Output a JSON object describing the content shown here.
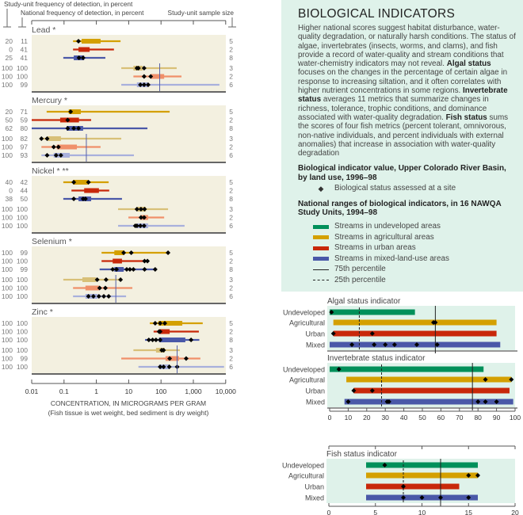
{
  "colors": {
    "undeveloped": "#00905a",
    "agricultural": "#d4a000",
    "urban": "#c8280a",
    "mixed": "#4a58a8",
    "agricultural_sediment": "#d8c078",
    "urban_sediment": "#f0906a",
    "mixed_sediment": "#a8b0dc",
    "panel": "#f3f0e0",
    "mint": "#dff2ea"
  },
  "info": {
    "title": "BIOLOGICAL INDICATORS",
    "p1": "Higher national scores suggest habitat disturbance, water-quality degradation, or naturally harsh conditions. The status of algae, invertebrates (insects, worms, and clams), and fish provide a record of water-quality and stream conditions that water-chemistry indicators may not reveal. ",
    "algal_term": "Algal status",
    "p2": " focuses on the changes in the percentage of certain algae in response to increasing siltation, and it often correlates with higher nutrient concentrations in some regions. ",
    "invert_term": "Invertebrate status",
    "p3": " averages 11 metrics that summarize changes in richness, tolerance, trophic conditions, and dominance associated with water-quality degradation. ",
    "fish_term": "Fish status",
    "p4": " sums the scores of four fish metrics (percent tolerant, omnivorous, non-native individuals, and percent individuals with external anomalies) that increase in association with water-quality degradation",
    "legend1_title": "Biological indicator value, Upper Colorado River Basin, by land use, 1996–98",
    "legend1_site": "Biological status assessed at a site",
    "legend2_title": "National ranges of biological indicators, in 16 NAWQA Study Units, 1994–98",
    "legend_undeveloped": "Streams in undeveloped areas",
    "legend_agricultural": "Streams in agricultural areas",
    "legend_urban": "Streams in urban areas",
    "legend_mixed": "Streams in mixed-land-use areas",
    "legend_p75": "75th percentile",
    "legend_p25": "25th percentile"
  },
  "chart_data": [
    {
      "type": "range-bar",
      "scale": "log",
      "header_study_unit_freq": "Study-unit frequency of detection, in percent",
      "header_national_freq": "National frequency of detection, in percent",
      "header_sample_size": "Study-unit sample size",
      "xlabel": "CONCENTRATION, IN MICROGRAMS PER GRAM",
      "xlabel_note": "(Fish tissue is wet weight, bed sediment is dry weight)",
      "xlim": [
        0.01,
        10000
      ],
      "ticks": [
        "0.01",
        "0.1",
        "1",
        "10",
        "100",
        "1,000",
        "10,000"
      ],
      "metals": [
        {
          "title": "Lead *",
          "guideline": 91,
          "fish": [
            {
              "land_use": "agricultural",
              "su_freq": "20",
              "nat_freq": "11",
              "n": "5",
              "range": [
                0.19,
                5.6
              ],
              "box": [
                0.35,
                1.35
              ],
              "sites": [
                0.28
              ]
            },
            {
              "land_use": "urban",
              "su_freq": "0",
              "nat_freq": "41",
              "n": "2",
              "range": [
                0.19,
                3.5
              ],
              "box": [
                0.28,
                0.62
              ],
              "sites": []
            },
            {
              "land_use": "mixed",
              "su_freq": "25",
              "nat_freq": "41",
              "n": "8",
              "range": [
                0.095,
                1.9
              ],
              "box": [
                0.2,
                0.42
              ],
              "sites": [
                0.29,
                0.39
              ]
            }
          ],
          "sediment": [
            {
              "land_use": "agricultural",
              "su_freq": "100",
              "nat_freq": "100",
              "n": "3",
              "range": [
                5.9,
                305
              ],
              "box": [
                14,
                27
              ],
              "sites": [
                18,
                20,
                30
              ]
            },
            {
              "land_use": "urban",
              "su_freq": "100",
              "nat_freq": "100",
              "n": "2",
              "range": [
                14,
                430
              ],
              "box": [
                48,
                125
              ],
              "sites": [
                30,
                48
              ]
            },
            {
              "land_use": "mixed",
              "su_freq": "100",
              "nat_freq": "99",
              "n": "6",
              "range": [
                5.9,
                6400
              ],
              "box": [
                18,
                40
              ],
              "sites": [
                23,
                30,
                40
              ]
            }
          ]
        },
        {
          "title": "Mercury *",
          "guideline": 0.49,
          "fish": [
            {
              "land_use": "agricultural",
              "su_freq": "20",
              "nat_freq": "71",
              "n": "5",
              "range": [
                0.029,
                185
              ],
              "box": [
                0.14,
                0.33
              ],
              "sites": [
                0.16
              ]
            },
            {
              "land_use": "urban",
              "su_freq": "50",
              "nat_freq": "59",
              "n": "2",
              "range": [
                0.01,
                0.69
              ],
              "box": [
                0.076,
                0.29
              ],
              "sites": [
                0.13
              ]
            },
            {
              "land_use": "mixed",
              "su_freq": "62",
              "nat_freq": "80",
              "n": "8",
              "range": [
                0.01,
                38
              ],
              "box": [
                0.12,
                0.39
              ],
              "sites": [
                0.13,
                0.2,
                0.28
              ]
            }
          ],
          "sediment": [
            {
              "land_use": "agricultural",
              "su_freq": "100",
              "nat_freq": "82",
              "n": "3",
              "range": [
                0.02,
                5.9
              ],
              "box": [
                0.031,
                0.08
              ],
              "sites": [
                0.02,
                0.03
              ]
            },
            {
              "land_use": "urban",
              "su_freq": "100",
              "nat_freq": "97",
              "n": "2",
              "range": [
                0.02,
                1.35
              ],
              "box": [
                0.06,
                0.25
              ],
              "sites": [
                0.048,
                0.067
              ]
            },
            {
              "land_use": "mixed",
              "su_freq": "100",
              "nat_freq": "93",
              "n": "6",
              "range": [
                0.02,
                14.5
              ],
              "box": [
                0.048,
                0.15
              ],
              "sites": [
                0.03,
                0.057,
                0.08
              ]
            }
          ]
        },
        {
          "title": "Nickel * **",
          "guideline": null,
          "fish": [
            {
              "land_use": "agricultural",
              "su_freq": "40",
              "nat_freq": "42",
              "n": "5",
              "range": [
                0.095,
                2.4
              ],
              "box": [
                0.19,
                0.57
              ],
              "sites": [
                0.2,
                0.57
              ]
            },
            {
              "land_use": "urban",
              "su_freq": "0",
              "nat_freq": "44",
              "n": "2",
              "range": [
                0.17,
                2.5
              ],
              "box": [
                0.42,
                1.2
              ],
              "sites": []
            },
            {
              "land_use": "mixed",
              "su_freq": "38",
              "nat_freq": "50",
              "n": "8",
              "range": [
                0.095,
                6.2
              ],
              "box": [
                0.28,
                0.69
              ],
              "sites": [
                0.2,
                0.39,
                0.46
              ]
            }
          ],
          "sediment": [
            {
              "land_use": "agricultural",
              "su_freq": "100",
              "nat_freq": "100",
              "n": "3",
              "range": [
                4.7,
                165
              ],
              "box": [
                18,
                34
              ],
              "sites": [
                18,
                24,
                31
              ]
            },
            {
              "land_use": "urban",
              "su_freq": "100",
              "nat_freq": "100",
              "n": "2",
              "range": [
                9.8,
                125
              ],
              "box": [
                23,
                40
              ],
              "sites": [
                24,
                30
              ]
            },
            {
              "land_use": "mixed",
              "su_freq": "100",
              "nat_freq": "100",
              "n": "6",
              "range": [
                4.7,
                535
              ],
              "box": [
                18,
                40
              ],
              "sites": [
                16,
                18,
                23,
                30
              ]
            }
          ]
        },
        {
          "title": "Selenium *",
          "guideline": 4,
          "fish": [
            {
              "land_use": "agricultural",
              "su_freq": "100",
              "nat_freq": "99",
              "n": "5",
              "range": [
                1.45,
                165
              ],
              "box": [
                3.6,
                7.4
              ],
              "sites": [
                7,
                12,
                165
              ]
            },
            {
              "land_use": "urban",
              "su_freq": "100",
              "nat_freq": "100",
              "n": "2",
              "range": [
                1.45,
                40
              ],
              "box": [
                3.2,
                6.2
              ],
              "sites": [
                31,
                38
              ]
            },
            {
              "land_use": "mixed",
              "su_freq": "100",
              "nat_freq": "99",
              "n": "8",
              "range": [
                1.26,
                66
              ],
              "box": [
                3.6,
                7
              ],
              "sites": [
                3.2,
                4.2,
                8.7,
                10.9,
                14,
                31,
                66
              ]
            }
          ],
          "sediment": [
            {
              "land_use": "agricultural",
              "su_freq": "100",
              "nat_freq": "100",
              "n": "3",
              "range": [
                0.095,
                5.6
              ],
              "box": [
                0.37,
                0.98
              ],
              "sites": [
                1.06,
                2.0,
                5.6
              ]
            },
            {
              "land_use": "urban",
              "su_freq": "100",
              "nat_freq": "100",
              "n": "2",
              "range": [
                0.19,
                13
              ],
              "box": [
                0.46,
                1.2
              ],
              "sites": [
                1.26,
                1.9
              ]
            },
            {
              "land_use": "mixed",
              "su_freq": "100",
              "nat_freq": "100",
              "n": "6",
              "range": [
                0.19,
                8.3
              ],
              "box": [
                0.46,
                1.1
              ],
              "sites": [
                0.57,
                0.81,
                1.2,
                1.7,
                2.4
              ]
            }
          ]
        },
        {
          "title": "Zinc *",
          "guideline": 315,
          "fish": [
            {
              "land_use": "agricultural",
              "su_freq": "100",
              "nat_freq": "100",
              "n": "5",
              "range": [
                45,
                1950
              ],
              "box": [
                83,
                455
              ],
              "sites": [
                66,
                94,
                131
              ]
            },
            {
              "land_use": "urban",
              "su_freq": "100",
              "nat_freq": "100",
              "n": "2",
              "range": [
                59,
                1480
              ],
              "box": [
                87,
                185
              ],
              "sites": [
                87,
                94
              ]
            },
            {
              "land_use": "mixed",
              "su_freq": "100",
              "nat_freq": "100",
              "n": "8",
              "range": [
                32,
                1530
              ],
              "box": [
                87,
                565
              ],
              "sites": [
                42,
                55,
                70,
                94,
                850
              ]
            }
          ],
          "sediment": [
            {
              "land_use": "agricultural",
              "su_freq": "100",
              "nat_freq": "100",
              "n": "3",
              "range": [
                14,
                380
              ],
              "box": [
                70,
                131
              ],
              "sites": [
                105,
                120
              ]
            },
            {
              "land_use": "urban",
              "su_freq": "100",
              "nat_freq": "99",
              "n": "2",
              "range": [
                5.9,
                1650
              ],
              "box": [
                138,
                360
              ],
              "sites": [
                185,
                600
              ]
            },
            {
              "land_use": "mixed",
              "su_freq": "100",
              "nat_freq": "100",
              "n": "6",
              "range": [
                20,
                8900
              ],
              "box": [
                87,
                180
              ],
              "sites": [
                94,
                120,
                180,
                315
              ]
            }
          ]
        }
      ]
    },
    {
      "type": "range-bar",
      "title": "Algal status indicator",
      "xlim": [
        0,
        100
      ],
      "p75": 57,
      "p25": 16,
      "categories": [
        "Undeveloped",
        "Agricultural",
        "Urban",
        "Mixed"
      ],
      "series": [
        {
          "land_use": "undeveloped",
          "range": [
            0,
            46
          ],
          "sites": [
            1
          ]
        },
        {
          "land_use": "agricultural",
          "range": [
            2,
            90
          ],
          "sites": [
            56,
            57
          ]
        },
        {
          "land_use": "urban",
          "range": [
            2,
            90
          ],
          "sites": [
            2,
            23
          ]
        },
        {
          "land_use": "mixed",
          "range": [
            0,
            92
          ],
          "sites": [
            12,
            24,
            30,
            35,
            47,
            58
          ]
        }
      ]
    },
    {
      "type": "range-bar",
      "title": "Invertebrate status indicator",
      "xlim": [
        0,
        100
      ],
      "ticks": [
        "0",
        "10",
        "20",
        "30",
        "40",
        "50",
        "60",
        "70",
        "80",
        "90",
        "100"
      ],
      "p75": 77,
      "p25": 28,
      "categories": [
        "Undeveloped",
        "Agricultural",
        "Urban",
        "Mixed"
      ],
      "series": [
        {
          "land_use": "undeveloped",
          "range": [
            0,
            83
          ],
          "sites": [
            5
          ]
        },
        {
          "land_use": "agricultural",
          "range": [
            9,
            98
          ],
          "sites": [
            84,
            98
          ]
        },
        {
          "land_use": "urban",
          "range": [
            13,
            97
          ],
          "sites": [
            13,
            23
          ]
        },
        {
          "land_use": "mixed",
          "range": [
            8,
            99
          ],
          "sites": [
            10,
            31,
            32,
            80,
            84,
            90
          ]
        }
      ]
    },
    {
      "type": "range-bar",
      "title": "Fish status indicator",
      "xlim": [
        0,
        20
      ],
      "ticks": [
        "0",
        "5",
        "10",
        "15",
        "20"
      ],
      "p75": 12,
      "p25": 8,
      "categories": [
        "Undeveloped",
        "Agricultural",
        "Urban",
        "Mixed"
      ],
      "series": [
        {
          "land_use": "undeveloped",
          "range": [
            4,
            16
          ],
          "sites": [
            6
          ]
        },
        {
          "land_use": "agricultural",
          "range": [
            4,
            16
          ],
          "sites": [
            15,
            16
          ]
        },
        {
          "land_use": "urban",
          "range": [
            4,
            14
          ],
          "sites": [
            8
          ]
        },
        {
          "land_use": "mixed",
          "range": [
            4,
            16
          ],
          "sites": [
            8,
            10,
            12,
            15
          ]
        }
      ]
    }
  ]
}
